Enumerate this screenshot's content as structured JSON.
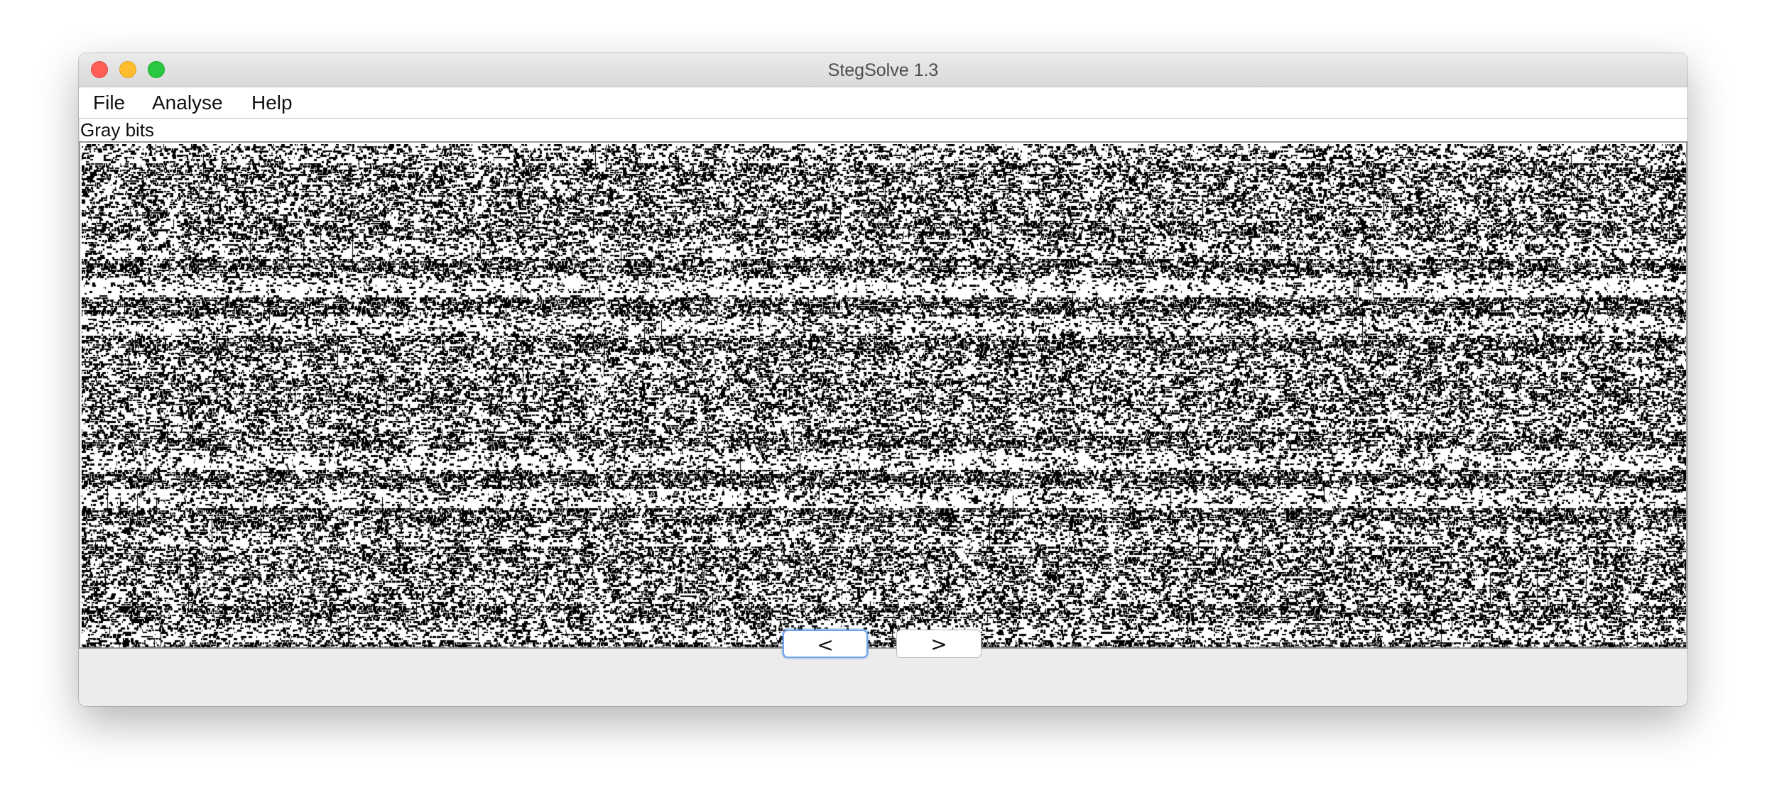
{
  "window": {
    "title": "StegSolve 1.3"
  },
  "menubar": {
    "items": [
      {
        "label": "File"
      },
      {
        "label": "Analyse"
      },
      {
        "label": "Help"
      }
    ]
  },
  "viewer": {
    "mode_label": "Gray bits"
  },
  "navigation": {
    "prev_label": "<",
    "next_label": ">"
  },
  "colors": {
    "close": "#ff5f57",
    "minimize": "#febc2e",
    "zoom": "#28c840",
    "focus_ring": "#6fa2e8",
    "bit_on": "#000000",
    "bit_off": "#ffffff"
  }
}
